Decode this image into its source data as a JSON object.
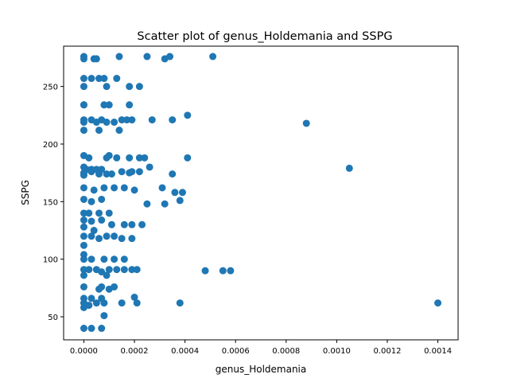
{
  "chart_data": {
    "type": "scatter",
    "title": "Scatter plot of genus_Holdemania and SSPG",
    "xlabel": "genus_Holdemania",
    "ylabel": "SSPG",
    "xlim": [
      -8e-05,
      0.00148
    ],
    "ylim": [
      30,
      285
    ],
    "xticks": [
      0.0,
      0.0002,
      0.0004,
      0.0006,
      0.0008,
      0.001,
      0.0012,
      0.0014
    ],
    "xtick_labels": [
      "0.0000",
      "0.0002",
      "0.0004",
      "0.0006",
      "0.0008",
      "0.0010",
      "0.0012",
      "0.0014"
    ],
    "yticks": [
      50,
      100,
      150,
      200,
      250
    ],
    "ytick_labels": [
      "50",
      "100",
      "150",
      "200",
      "250"
    ],
    "marker_color": "#1f77b4",
    "grid": false,
    "x": [
      0.0,
      0.0,
      4e-05,
      5e-05,
      0.00014,
      0.00025,
      0.00032,
      0.00034,
      0.00051,
      0.0,
      3e-05,
      6e-05,
      8e-05,
      0.00013,
      0.00018,
      0.00022,
      0.0,
      9e-05,
      0.0,
      0.0,
      8e-05,
      0.0001,
      0.00018,
      0.0,
      0.0,
      3e-05,
      5e-05,
      7e-05,
      9e-05,
      0.00012,
      0.00015,
      0.00017,
      0.00019,
      0.00027,
      0.00035,
      0.00041,
      0.00088,
      0.0,
      6e-05,
      0.00014,
      0.0,
      2e-05,
      9e-05,
      0.0001,
      0.00013,
      0.00018,
      0.00022,
      0.00024,
      0.00041,
      0.0,
      1e-05,
      3e-05,
      5e-05,
      7e-05,
      0.00018,
      0.00026,
      0.00035,
      0.00105,
      0.0,
      0.0,
      3e-05,
      6e-05,
      9e-05,
      0.00011,
      0.00015,
      0.00019,
      0.00022,
      0.00031,
      0.00036,
      0.00039,
      0.0,
      4e-05,
      8e-05,
      0.00012,
      0.00016,
      0.0002,
      0.00032,
      0.00038,
      0.0,
      3e-05,
      7e-05,
      0.00025,
      0.0,
      2e-05,
      6e-05,
      0.0001,
      0.0,
      3e-05,
      7e-05,
      0.00011,
      0.00016,
      0.00019,
      0.00023,
      0.0,
      4e-05,
      0.0,
      3e-05,
      6e-05,
      9e-05,
      0.00012,
      0.00015,
      0.00019,
      0.0,
      0.0,
      0.0,
      3e-05,
      8e-05,
      0.00012,
      0.00016,
      0.0,
      2e-05,
      5e-05,
      7e-05,
      0.0001,
      0.00013,
      0.00016,
      0.00019,
      0.00021,
      0.00048,
      0.00055,
      0.00058,
      0.0,
      9e-05,
      0.0,
      7e-05,
      0.00012,
      6e-05,
      0.0001,
      0.0,
      3e-05,
      7e-05,
      0.0002,
      0.00038,
      0.0014,
      0.0,
      2e-05,
      5e-05,
      8e-05,
      0.00015,
      0.00021,
      0.0,
      8e-05,
      0.0,
      3e-05,
      7e-05
    ],
    "y": [
      276,
      274,
      274,
      274,
      276,
      276,
      274,
      276,
      276,
      257,
      257,
      257,
      257,
      257,
      250,
      250,
      250,
      250,
      234,
      234,
      234,
      234,
      234,
      221,
      219,
      221,
      219,
      221,
      219,
      219,
      221,
      221,
      221,
      221,
      221,
      225,
      218,
      212,
      212,
      212,
      190,
      188,
      188,
      190,
      188,
      188,
      188,
      188,
      188,
      180,
      178,
      178,
      178,
      178,
      175,
      180,
      174,
      179,
      175,
      173,
      176,
      174,
      174,
      174,
      176,
      176,
      176,
      162,
      158,
      158,
      162,
      160,
      162,
      162,
      162,
      160,
      148,
      151,
      152,
      150,
      152,
      148,
      140,
      140,
      140,
      140,
      134,
      133,
      134,
      130,
      130,
      130,
      130,
      128,
      125,
      120,
      120,
      118,
      120,
      120,
      118,
      118,
      112,
      104,
      100,
      100,
      100,
      100,
      100,
      91,
      91,
      91,
      89,
      91,
      91,
      91,
      91,
      91,
      90,
      90,
      90,
      86,
      86,
      76,
      76,
      76,
      74,
      74,
      66,
      66,
      66,
      67,
      62,
      62,
      62,
      60,
      62,
      62,
      62,
      62,
      58,
      51,
      40,
      40,
      40
    ]
  }
}
